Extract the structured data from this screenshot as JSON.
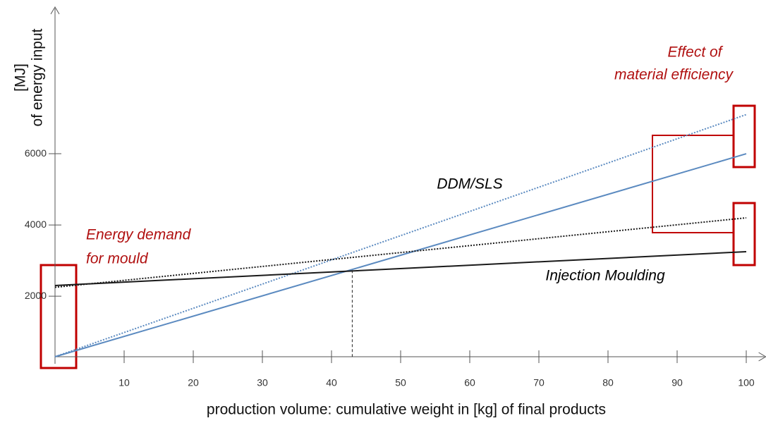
{
  "chart_data": {
    "type": "line",
    "xlabel": "production volume: cumulative weight in [kg] of final products",
    "ylabel": [
      "[MJ]",
      "of energy input"
    ],
    "xlim": [
      0,
      102
    ],
    "ylim": [
      300,
      10000
    ],
    "xticks": [
      10,
      20,
      30,
      40,
      50,
      60,
      70,
      80,
      90,
      100
    ],
    "yticks": [
      2000,
      4000,
      6000
    ],
    "x": [
      0,
      100
    ],
    "series": [
      {
        "color": "#5b8ac0",
        "dash": "solid",
        "values": [
          300,
          6000
        ]
      },
      {
        "color": "#5b8ac0",
        "dash": "dotted",
        "values": [
          300,
          7100
        ]
      },
      {
        "color": "#1a1a1a",
        "dash": "solid",
        "values": [
          2300,
          3250
        ]
      },
      {
        "color": "#1a1a1a",
        "dash": "dotted",
        "values": [
          2250,
          4200
        ]
      }
    ],
    "crossover": {
      "x": 43,
      "y": 2730
    },
    "annotations": {
      "ddm": "DDM/SLS",
      "im": "Injection Moulding",
      "mould": [
        "Energy demand",
        "for mould"
      ],
      "efficiency": [
        "Effect of",
        "material efficiency"
      ]
    }
  }
}
